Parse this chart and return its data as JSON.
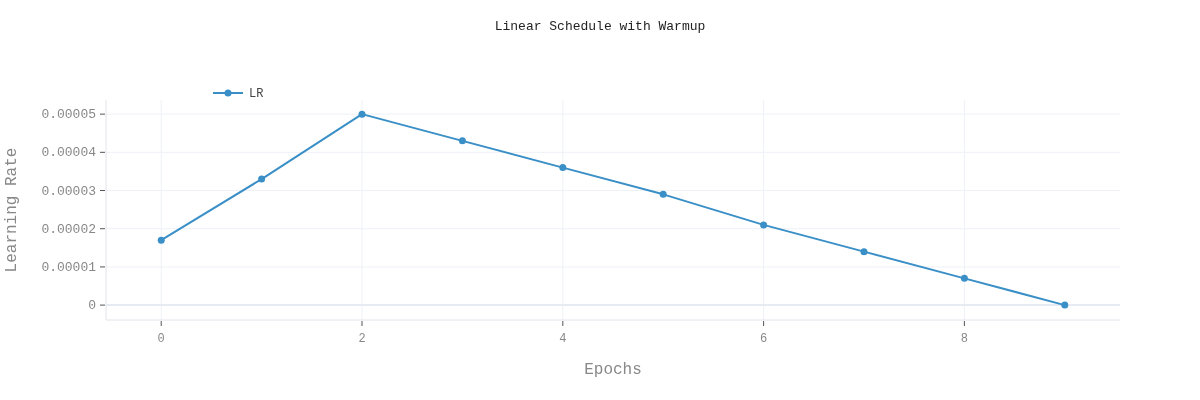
{
  "chart_data": {
    "type": "line",
    "title": "Linear Schedule with Warmup",
    "xlabel": "Epochs",
    "ylabel": "Learning Rate",
    "x": [
      0,
      1,
      2,
      3,
      4,
      5,
      6,
      7,
      8,
      9
    ],
    "series": [
      {
        "name": "LR",
        "color": "#3a8fc7",
        "values": [
          1.7e-05,
          3.3e-05,
          5e-05,
          4.3e-05,
          3.6e-05,
          2.9e-05,
          2.1e-05,
          1.4e-05,
          7e-06,
          0
        ]
      }
    ],
    "xlim": [
      -0.55,
      9.55
    ],
    "xticks": [
      0,
      2,
      4,
      6,
      8
    ],
    "ylim": [
      -3.9e-06,
      5.37e-05
    ],
    "yticks": [
      {
        "value": 0,
        "label": "0"
      },
      {
        "value": 1e-05,
        "label": "0.00001"
      },
      {
        "value": 2e-05,
        "label": "0.00002"
      },
      {
        "value": 3e-05,
        "label": "0.00003"
      },
      {
        "value": 4e-05,
        "label": "0.00004"
      },
      {
        "value": 5e-05,
        "label": "0.00005"
      }
    ],
    "grid": true,
    "legend": "top left",
    "marker": "circle",
    "line_style": "solid"
  }
}
